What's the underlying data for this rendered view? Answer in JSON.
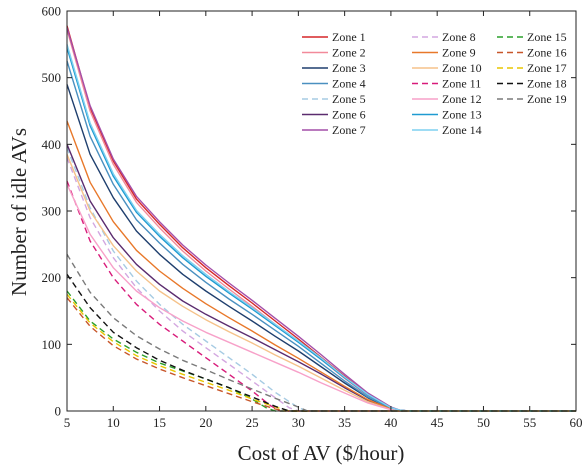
{
  "chart_data": {
    "type": "line",
    "title": "",
    "xlabel": "Cost of AV ($/hour)",
    "ylabel": "Number of idle AVs",
    "xlim": [
      5,
      60
    ],
    "ylim": [
      0,
      600
    ],
    "x_ticks": [
      5,
      10,
      15,
      20,
      25,
      30,
      35,
      40,
      45,
      50,
      55,
      60
    ],
    "y_ticks": [
      0,
      100,
      200,
      300,
      400,
      500,
      600
    ],
    "grid": false,
    "legend_position": "top-right",
    "legend_columns": 3,
    "series": [
      {
        "name": "Zone 1",
        "color": "#d62728",
        "dash": "solid",
        "x": [
          5,
          7.5,
          10,
          12.5,
          15,
          17.5,
          20,
          22.5,
          25,
          27.5,
          30,
          32.5,
          35,
          37.5,
          40,
          41,
          42,
          60
        ],
        "y": [
          578,
          455,
          375,
          318,
          280,
          245,
          215,
          188,
          162,
          135,
          108,
          80,
          52,
          25,
          5,
          1,
          0,
          0
        ]
      },
      {
        "name": "Zone 2",
        "color": "#f28a9a",
        "dash": "solid",
        "x": [
          5,
          7.5,
          10,
          12.5,
          15,
          17.5,
          20,
          22.5,
          25,
          27.5,
          30,
          32.5,
          35,
          37.5,
          40,
          41,
          42,
          60
        ],
        "y": [
          572,
          450,
          370,
          313,
          275,
          240,
          210,
          183,
          157,
          130,
          104,
          77,
          49,
          23,
          4,
          1,
          0,
          0
        ]
      },
      {
        "name": "Zone 3",
        "color": "#1f3f6e",
        "dash": "solid",
        "x": [
          5,
          7.5,
          10,
          12.5,
          15,
          17.5,
          20,
          22.5,
          25,
          27.5,
          30,
          32.5,
          35,
          37.5,
          40,
          41,
          42,
          60
        ],
        "y": [
          490,
          385,
          320,
          270,
          235,
          205,
          180,
          157,
          135,
          112,
          90,
          66,
          42,
          20,
          3,
          1,
          0,
          0
        ]
      },
      {
        "name": "Zone 4",
        "color": "#4a90c0",
        "dash": "solid",
        "x": [
          5,
          7.5,
          10,
          12.5,
          15,
          17.5,
          20,
          22.5,
          25,
          27.5,
          30,
          32.5,
          35,
          37.5,
          40,
          41,
          42,
          60
        ],
        "y": [
          525,
          412,
          340,
          287,
          252,
          220,
          193,
          168,
          145,
          121,
          97,
          71,
          45,
          21,
          4,
          1,
          0,
          0
        ]
      },
      {
        "name": "Zone 5",
        "color": "#a6cbe3",
        "dash": "dashed",
        "x": [
          5,
          7.5,
          10,
          12.5,
          15,
          17.5,
          20,
          22.5,
          25,
          27.5,
          30,
          31,
          60
        ],
        "y": [
          395,
          305,
          240,
          195,
          160,
          130,
          105,
          80,
          55,
          28,
          5,
          0,
          0
        ]
      },
      {
        "name": "Zone 6",
        "color": "#5b2c6f",
        "dash": "solid",
        "x": [
          5,
          7.5,
          10,
          12.5,
          15,
          17.5,
          20,
          22.5,
          25,
          27.5,
          30,
          32.5,
          35,
          37.5,
          40,
          41,
          60
        ],
        "y": [
          400,
          315,
          260,
          220,
          190,
          165,
          145,
          127,
          110,
          92,
          74,
          55,
          35,
          16,
          3,
          0,
          0
        ]
      },
      {
        "name": "Zone 7",
        "color": "#a44fa8",
        "dash": "solid",
        "x": [
          5,
          7.5,
          10,
          12.5,
          15,
          17.5,
          20,
          22.5,
          25,
          27.5,
          30,
          32.5,
          35,
          37.5,
          40,
          41,
          42,
          60
        ],
        "y": [
          575,
          458,
          378,
          322,
          284,
          249,
          219,
          192,
          166,
          139,
          112,
          84,
          55,
          27,
          6,
          1,
          0,
          0
        ]
      },
      {
        "name": "Zone 8",
        "color": "#d3a7e0",
        "dash": "dashed",
        "x": [
          5,
          7.5,
          10,
          12.5,
          15,
          17.5,
          20,
          22.5,
          25,
          27.5,
          29,
          30,
          60
        ],
        "y": [
          380,
          290,
          230,
          185,
          150,
          120,
          95,
          70,
          45,
          20,
          5,
          0,
          0
        ]
      },
      {
        "name": "Zone 9",
        "color": "#e8782a",
        "dash": "solid",
        "x": [
          5,
          7.5,
          10,
          12.5,
          15,
          17.5,
          20,
          22.5,
          25,
          27.5,
          30,
          32.5,
          35,
          37.5,
          40,
          41,
          60
        ],
        "y": [
          435,
          343,
          284,
          241,
          210,
          184,
          161,
          140,
          120,
          99,
          79,
          58,
          37,
          17,
          3,
          0,
          0
        ]
      },
      {
        "name": "Zone 10",
        "color": "#f5c28a",
        "dash": "solid",
        "x": [
          5,
          7.5,
          10,
          12.5,
          15,
          17.5,
          20,
          22.5,
          25,
          27.5,
          30,
          32.5,
          35,
          37.5,
          40,
          41,
          60
        ],
        "y": [
          385,
          300,
          248,
          210,
          180,
          157,
          137,
          119,
          102,
          84,
          67,
          49,
          31,
          14,
          2,
          0,
          0
        ]
      },
      {
        "name": "Zone 11",
        "color": "#d81b7a",
        "dash": "dashed",
        "x": [
          5,
          7.5,
          10,
          12.5,
          15,
          17.5,
          20,
          22.5,
          25,
          27,
          28,
          60
        ],
        "y": [
          345,
          255,
          200,
          160,
          130,
          105,
          80,
          55,
          30,
          8,
          0,
          0
        ]
      },
      {
        "name": "Zone 12",
        "color": "#f7a1c9",
        "dash": "solid",
        "x": [
          5,
          7.5,
          10,
          12.5,
          15,
          17.5,
          20,
          22.5,
          25,
          27.5,
          30,
          32.5,
          35,
          37.5,
          40,
          41,
          60
        ],
        "y": [
          340,
          265,
          215,
          180,
          155,
          135,
          118,
          103,
          88,
          73,
          58,
          42,
          27,
          12,
          2,
          0,
          0
        ]
      },
      {
        "name": "Zone 13",
        "color": "#1f9bd1",
        "dash": "solid",
        "x": [
          5,
          7.5,
          10,
          12.5,
          15,
          17.5,
          20,
          22.5,
          25,
          27.5,
          30,
          32.5,
          35,
          37.5,
          40,
          41,
          42,
          60
        ],
        "y": [
          545,
          428,
          352,
          298,
          262,
          230,
          202,
          177,
          153,
          128,
          103,
          77,
          50,
          24,
          5,
          1,
          0,
          0
        ]
      },
      {
        "name": "Zone 14",
        "color": "#7fd0f0",
        "dash": "solid",
        "x": [
          5,
          7.5,
          10,
          12.5,
          15,
          17.5,
          20,
          22.5,
          25,
          27.5,
          30,
          32.5,
          35,
          37.5,
          40,
          41,
          42,
          60
        ],
        "y": [
          550,
          432,
          356,
          301,
          265,
          233,
          205,
          179,
          155,
          130,
          105,
          79,
          51,
          25,
          5,
          1,
          0,
          0
        ]
      },
      {
        "name": "Zone 15",
        "color": "#2ca02c",
        "dash": "dashed",
        "x": [
          5,
          7.5,
          10,
          12.5,
          15,
          17.5,
          20,
          22.5,
          25,
          26.5,
          27.5,
          60
        ],
        "y": [
          180,
          135,
          108,
          88,
          72,
          60,
          48,
          35,
          18,
          5,
          0,
          0
        ]
      },
      {
        "name": "Zone 16",
        "color": "#c8562a",
        "dash": "dashed",
        "x": [
          5,
          7.5,
          10,
          12.5,
          15,
          17.5,
          20,
          22.5,
          25,
          27.5,
          28.5,
          60
        ],
        "y": [
          170,
          127,
          98,
          78,
          63,
          50,
          38,
          26,
          14,
          3,
          0,
          0
        ]
      },
      {
        "name": "Zone 17",
        "color": "#e8c600",
        "dash": "dashed",
        "x": [
          5,
          7.5,
          10,
          12.5,
          15,
          17.5,
          20,
          22.5,
          25,
          27.5,
          29,
          60
        ],
        "y": [
          175,
          132,
          104,
          83,
          68,
          55,
          43,
          31,
          18,
          6,
          0,
          0
        ]
      },
      {
        "name": "Zone 18",
        "color": "#111111",
        "dash": "dashed",
        "x": [
          5,
          7.5,
          10,
          12.5,
          15,
          17.5,
          20,
          22.5,
          25,
          27.5,
          29,
          60
        ],
        "y": [
          205,
          155,
          118,
          95,
          76,
          61,
          48,
          35,
          21,
          7,
          0,
          0
        ]
      },
      {
        "name": "Zone 19",
        "color": "#7a7a7a",
        "dash": "dashed",
        "x": [
          5,
          7.5,
          10,
          12.5,
          15,
          17.5,
          20,
          22.5,
          25,
          27.5,
          30,
          31,
          60
        ],
        "y": [
          235,
          178,
          140,
          113,
          93,
          76,
          62,
          47,
          33,
          19,
          6,
          0,
          0
        ]
      }
    ]
  }
}
